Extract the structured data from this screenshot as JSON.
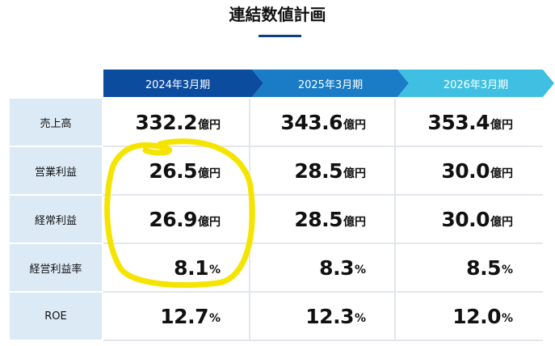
{
  "title": "連結数値計画",
  "table": {
    "headers": [
      "2024年3月期",
      "2025年3月期",
      "2026年3月期"
    ],
    "rows": [
      {
        "label": "売上高",
        "cells": [
          {
            "value": "332.2",
            "unit": "億円"
          },
          {
            "value": "343.6",
            "unit": "億円"
          },
          {
            "value": "353.4",
            "unit": "億円"
          }
        ]
      },
      {
        "label": "営業利益",
        "cells": [
          {
            "value": "26.5",
            "unit": "億円"
          },
          {
            "value": "28.5",
            "unit": "億円"
          },
          {
            "value": "30.0",
            "unit": "億円"
          }
        ]
      },
      {
        "label": "経常利益",
        "cells": [
          {
            "value": "26.9",
            "unit": "億円"
          },
          {
            "value": "28.5",
            "unit": "億円"
          },
          {
            "value": "30.0",
            "unit": "億円"
          }
        ]
      },
      {
        "label": "経営利益率",
        "cells": [
          {
            "value": "8.1",
            "unit": "%"
          },
          {
            "value": "8.3",
            "unit": "%"
          },
          {
            "value": "8.5",
            "unit": "%"
          }
        ]
      },
      {
        "label": "ROE",
        "cells": [
          {
            "value": "12.7",
            "unit": "%"
          },
          {
            "value": "12.3",
            "unit": "%"
          },
          {
            "value": "12.0",
            "unit": "%"
          }
        ]
      }
    ]
  }
}
